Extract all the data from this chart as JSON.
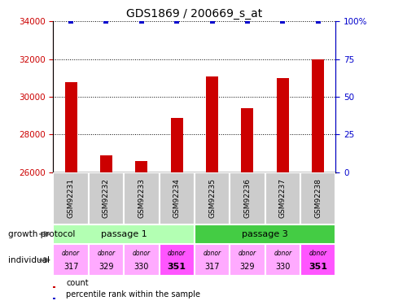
{
  "title": "GDS1869 / 200669_s_at",
  "samples": [
    "GSM92231",
    "GSM92232",
    "GSM92233",
    "GSM92234",
    "GSM92235",
    "GSM92236",
    "GSM92237",
    "GSM92238"
  ],
  "counts": [
    30800,
    26900,
    26600,
    28900,
    31100,
    29400,
    31000,
    32000
  ],
  "percentile": [
    100,
    100,
    100,
    100,
    100,
    100,
    100,
    100
  ],
  "ylim": [
    26000,
    34000
  ],
  "yticks": [
    26000,
    28000,
    30000,
    32000,
    34000
  ],
  "right_yticks": [
    0,
    25,
    50,
    75,
    100
  ],
  "right_ylim": [
    0,
    100
  ],
  "bar_color": "#cc0000",
  "dot_color": "#0000cc",
  "passage1_color": "#b3ffb3",
  "passage3_color": "#44cc44",
  "donor_colors_light": "#ffaaff",
  "donor_colors_bold": "#ff55ff",
  "donors": [
    "317",
    "329",
    "330",
    "351",
    "317",
    "329",
    "330",
    "351"
  ],
  "donor_bold": [
    "351"
  ],
  "growth_protocol_label": "growth protocol",
  "individual_label": "individual",
  "passage_labels": [
    "passage 1",
    "passage 3"
  ],
  "count_legend": "count",
  "percentile_legend": "percentile rank within the sample",
  "title_fontsize": 10,
  "axis_label_color_left": "#cc0000",
  "axis_label_color_right": "#0000cc",
  "sample_box_color": "#cccccc",
  "bar_width": 0.35
}
